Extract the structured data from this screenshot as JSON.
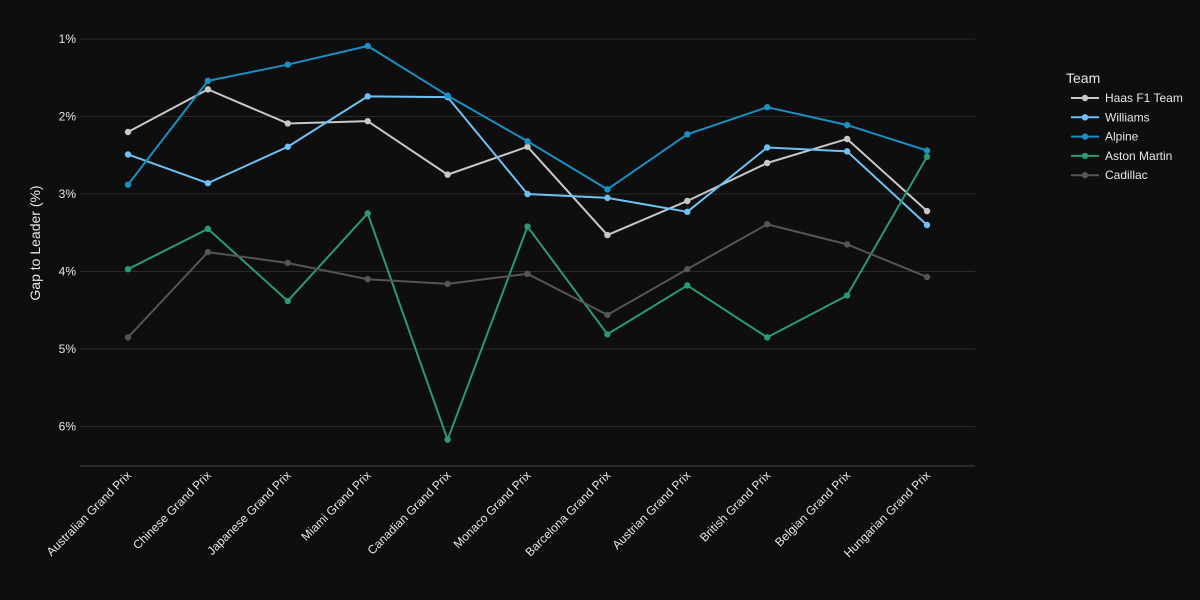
{
  "chart_data": {
    "type": "line",
    "ylabel": "Gap to Leader (%)",
    "xlabel": "",
    "ylim": [
      0.8,
      6.5
    ],
    "y_reversed": true,
    "y_ticks": [
      1,
      2,
      3,
      4,
      5,
      6
    ],
    "y_tick_labels": [
      "1%",
      "2%",
      "3%",
      "4%",
      "5%",
      "6%"
    ],
    "grid": true,
    "legend_title": "Team",
    "legend_position": "top-right",
    "categories": [
      "Australian Grand Prix",
      "Chinese Grand Prix",
      "Japanese Grand Prix",
      "Miami Grand Prix",
      "Canadian Grand Prix",
      "Monaco Grand Prix",
      "Barcelona Grand Prix",
      "Austrian Grand Prix",
      "British Grand Prix",
      "Belgian Grand Prix",
      "Hungarian Grand Prix"
    ],
    "series": [
      {
        "name": "Haas F1 Team",
        "color": "#c8c8c8",
        "values": [
          2.2,
          1.65,
          2.09,
          2.06,
          2.75,
          2.39,
          3.53,
          3.09,
          2.6,
          2.29,
          3.22
        ]
      },
      {
        "name": "Williams",
        "color": "#6ec1f5",
        "values": [
          2.49,
          2.86,
          2.39,
          1.74,
          1.75,
          3.0,
          3.05,
          3.23,
          2.4,
          2.45,
          3.4
        ]
      },
      {
        "name": "Alpine",
        "color": "#1a8fc4",
        "values": [
          2.88,
          1.54,
          1.33,
          1.09,
          1.73,
          2.32,
          2.94,
          2.23,
          1.88,
          2.11,
          2.44
        ]
      },
      {
        "name": "Aston Martin",
        "color": "#2a9a72",
        "values": [
          3.97,
          3.45,
          4.38,
          3.25,
          6.17,
          3.42,
          4.81,
          4.18,
          4.85,
          4.31,
          2.52
        ]
      },
      {
        "name": "Cadillac",
        "color": "#555555",
        "values": [
          4.85,
          3.75,
          3.89,
          4.1,
          4.16,
          4.03,
          4.56,
          3.97,
          3.39,
          3.65,
          4.07
        ]
      }
    ]
  }
}
